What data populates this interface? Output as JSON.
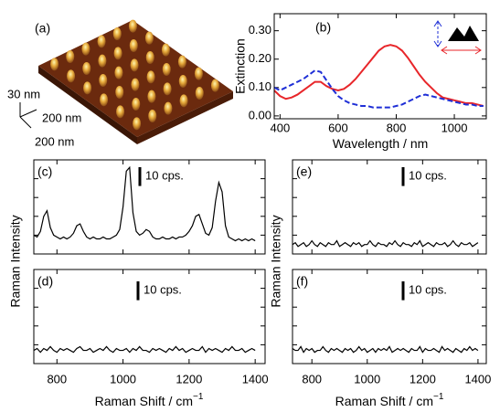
{
  "panel_a": {
    "label": "(a)",
    "scale_labels": [
      "30 nm",
      "200 nm",
      "200 nm"
    ]
  },
  "chart_data": [
    {
      "type": "line",
      "panel_label": "(b)",
      "xlabel": "Wavelength / nm",
      "ylabel": "Extinction",
      "xlim": [
        380,
        1110
      ],
      "ylim": [
        -0.01,
        0.36
      ],
      "xticks": [
        400,
        600,
        800,
        1000
      ],
      "yticks": [
        {
          "value": 0,
          "label": "0.00"
        },
        {
          "value": 0.1,
          "label": "0.10"
        },
        {
          "value": 0.2,
          "label": "0.20"
        },
        {
          "value": 0.3,
          "label": "0.30"
        }
      ],
      "x": [
        380,
        400,
        420,
        440,
        460,
        480,
        500,
        520,
        540,
        560,
        580,
        600,
        620,
        640,
        660,
        680,
        700,
        720,
        740,
        760,
        780,
        800,
        820,
        840,
        860,
        880,
        900,
        920,
        940,
        960,
        980,
        1000,
        1020,
        1040,
        1060,
        1080,
        1100
      ],
      "series": [
        {
          "color": "#e8262a",
          "style": "solid",
          "values": [
            0.09,
            0.07,
            0.06,
            0.065,
            0.075,
            0.09,
            0.105,
            0.12,
            0.12,
            0.105,
            0.095,
            0.09,
            0.095,
            0.11,
            0.13,
            0.155,
            0.18,
            0.205,
            0.23,
            0.245,
            0.25,
            0.245,
            0.23,
            0.205,
            0.175,
            0.145,
            0.12,
            0.1,
            0.08,
            0.065,
            0.06,
            0.055,
            0.05,
            0.045,
            0.045,
            0.04,
            0.035
          ]
        },
        {
          "color": "#1f2fd6",
          "style": "dashed",
          "values": [
            0.1,
            0.09,
            0.1,
            0.11,
            0.12,
            0.13,
            0.145,
            0.16,
            0.155,
            0.125,
            0.095,
            0.07,
            0.055,
            0.045,
            0.04,
            0.035,
            0.035,
            0.03,
            0.03,
            0.03,
            0.03,
            0.035,
            0.04,
            0.05,
            0.06,
            0.07,
            0.075,
            0.07,
            0.065,
            0.06,
            0.055,
            0.05,
            0.045,
            0.04,
            0.04,
            0.035,
            0.035
          ]
        }
      ]
    },
    {
      "type": "line",
      "panel_label": "(c)",
      "ylabel": "Raman Intensity",
      "xlim": [
        730,
        1430
      ],
      "ylim": [
        0,
        50
      ],
      "xticks": [
        800,
        1000,
        1200,
        1400
      ],
      "show_xtick_labels": false,
      "yticks": [
        10,
        20,
        30,
        40
      ],
      "color": "#000000",
      "scale_bar": {
        "value": 10,
        "label": "10 cps."
      },
      "x": [
        730,
        740,
        750,
        760,
        770,
        780,
        790,
        800,
        810,
        820,
        830,
        840,
        850,
        860,
        870,
        880,
        890,
        900,
        910,
        920,
        930,
        940,
        950,
        960,
        970,
        980,
        990,
        1000,
        1010,
        1020,
        1030,
        1040,
        1050,
        1060,
        1070,
        1080,
        1090,
        1100,
        1110,
        1120,
        1130,
        1140,
        1150,
        1160,
        1170,
        1180,
        1190,
        1200,
        1210,
        1220,
        1230,
        1240,
        1250,
        1260,
        1270,
        1280,
        1290,
        1300,
        1310,
        1320,
        1330,
        1340,
        1350,
        1360,
        1370,
        1380,
        1390,
        1400
      ],
      "values": [
        10,
        9,
        12,
        20,
        23,
        14,
        10,
        9,
        8,
        9,
        8,
        9,
        11,
        15,
        16,
        12,
        9,
        8,
        9,
        8,
        8,
        9,
        8,
        8,
        9,
        10,
        13,
        25,
        44,
        46,
        22,
        12,
        10,
        11,
        13,
        12,
        9,
        8,
        8,
        9,
        8,
        8,
        9,
        8,
        9,
        9,
        10,
        12,
        15,
        20,
        21,
        16,
        11,
        10,
        14,
        28,
        38,
        33,
        15,
        9,
        8,
        7,
        8,
        7,
        8,
        7,
        8,
        7
      ]
    },
    {
      "type": "line",
      "panel_label": "(d)",
      "xlabel": "Raman Shift / cm",
      "xlabel_sup": "−1",
      "xlim": [
        730,
        1430
      ],
      "ylim": [
        0,
        50
      ],
      "xticks": [
        800,
        1000,
        1200,
        1400
      ],
      "show_xtick_labels": true,
      "yticks": [
        10,
        20,
        30,
        40
      ],
      "color": "#000000",
      "scale_bar": {
        "value": 10,
        "label": "10 cps."
      },
      "x": [
        730,
        740,
        750,
        760,
        770,
        780,
        790,
        800,
        810,
        820,
        830,
        840,
        850,
        860,
        870,
        880,
        890,
        900,
        910,
        920,
        930,
        940,
        950,
        960,
        970,
        980,
        990,
        1000,
        1010,
        1020,
        1030,
        1040,
        1050,
        1060,
        1070,
        1080,
        1090,
        1100,
        1110,
        1120,
        1130,
        1140,
        1150,
        1160,
        1170,
        1180,
        1190,
        1200,
        1210,
        1220,
        1230,
        1240,
        1250,
        1260,
        1270,
        1280,
        1290,
        1300,
        1310,
        1320,
        1330,
        1340,
        1350,
        1360,
        1370,
        1380,
        1390,
        1400
      ],
      "values": [
        7,
        8,
        6,
        8,
        7,
        9,
        7,
        6,
        8,
        7,
        8,
        7,
        6,
        8,
        9,
        7,
        7,
        8,
        6,
        7,
        8,
        7,
        9,
        7,
        6,
        8,
        7,
        7,
        8,
        6,
        8,
        7,
        9,
        7,
        7,
        6,
        8,
        7,
        8,
        7,
        6,
        8,
        7,
        9,
        7,
        8,
        6,
        7,
        8,
        7,
        7,
        9,
        6,
        8,
        7,
        8,
        7,
        6,
        8,
        7,
        9,
        7,
        7,
        8,
        6,
        7,
        8,
        7
      ]
    },
    {
      "type": "line",
      "panel_label": "(e)",
      "ylabel": "Raman Intensity",
      "xlim": [
        730,
        1430
      ],
      "ylim": [
        0,
        50
      ],
      "xticks": [
        800,
        1000,
        1200,
        1400
      ],
      "show_xtick_labels": false,
      "yticks": [
        10,
        20,
        30,
        40
      ],
      "color": "#000000",
      "scale_bar": {
        "value": 10,
        "label": "10 cps."
      },
      "x": [
        730,
        740,
        750,
        760,
        770,
        780,
        790,
        800,
        810,
        820,
        830,
        840,
        850,
        860,
        870,
        880,
        890,
        900,
        910,
        920,
        930,
        940,
        950,
        960,
        970,
        980,
        990,
        1000,
        1010,
        1020,
        1030,
        1040,
        1050,
        1060,
        1070,
        1080,
        1090,
        1100,
        1110,
        1120,
        1130,
        1140,
        1150,
        1160,
        1170,
        1180,
        1190,
        1200,
        1210,
        1220,
        1230,
        1240,
        1250,
        1260,
        1270,
        1280,
        1290,
        1300,
        1310,
        1320,
        1330,
        1340,
        1350,
        1360,
        1370,
        1380,
        1390,
        1400
      ],
      "values": [
        5,
        6,
        4,
        5,
        6,
        4,
        5,
        7,
        5,
        4,
        6,
        5,
        4,
        6,
        5,
        5,
        7,
        4,
        5,
        6,
        5,
        4,
        6,
        5,
        6,
        4,
        5,
        5,
        7,
        5,
        4,
        6,
        5,
        5,
        4,
        6,
        5,
        7,
        5,
        4,
        6,
        5,
        5,
        4,
        6,
        5,
        7,
        4,
        5,
        6,
        5,
        4,
        6,
        5,
        5,
        6,
        4,
        5,
        7,
        5,
        4,
        6,
        5,
        5,
        6,
        4,
        5,
        6
      ]
    },
    {
      "type": "line",
      "panel_label": "(f)",
      "xlabel": "Raman Shift / cm",
      "xlabel_sup": "−1",
      "xlim": [
        730,
        1430
      ],
      "ylim": [
        0,
        50
      ],
      "xticks": [
        800,
        1000,
        1200,
        1400
      ],
      "show_xtick_labels": true,
      "yticks": [
        10,
        20,
        30,
        40
      ],
      "color": "#000000",
      "scale_bar": {
        "value": 10,
        "label": "10 cps."
      },
      "x": [
        730,
        740,
        750,
        760,
        770,
        780,
        790,
        800,
        810,
        820,
        830,
        840,
        850,
        860,
        870,
        880,
        890,
        900,
        910,
        920,
        930,
        940,
        950,
        960,
        970,
        980,
        990,
        1000,
        1010,
        1020,
        1030,
        1040,
        1050,
        1060,
        1070,
        1080,
        1090,
        1100,
        1110,
        1120,
        1130,
        1140,
        1150,
        1160,
        1170,
        1180,
        1190,
        1200,
        1210,
        1220,
        1230,
        1240,
        1250,
        1260,
        1270,
        1280,
        1290,
        1300,
        1310,
        1320,
        1330,
        1340,
        1350,
        1360,
        1370,
        1380,
        1390,
        1400
      ],
      "values": [
        8,
        7,
        7,
        9,
        6,
        8,
        7,
        8,
        6,
        7,
        7,
        9,
        7,
        6,
        8,
        7,
        8,
        7,
        6,
        8,
        7,
        8,
        6,
        7,
        9,
        7,
        8,
        6,
        7,
        8,
        6,
        8,
        7,
        8,
        7,
        9,
        6,
        7,
        8,
        7,
        8,
        7,
        6,
        8,
        7,
        7,
        9,
        6,
        8,
        7,
        7,
        8,
        7,
        6,
        9,
        7,
        8,
        7,
        6,
        8,
        7,
        6,
        8,
        7,
        9,
        7,
        8,
        7
      ]
    }
  ]
}
